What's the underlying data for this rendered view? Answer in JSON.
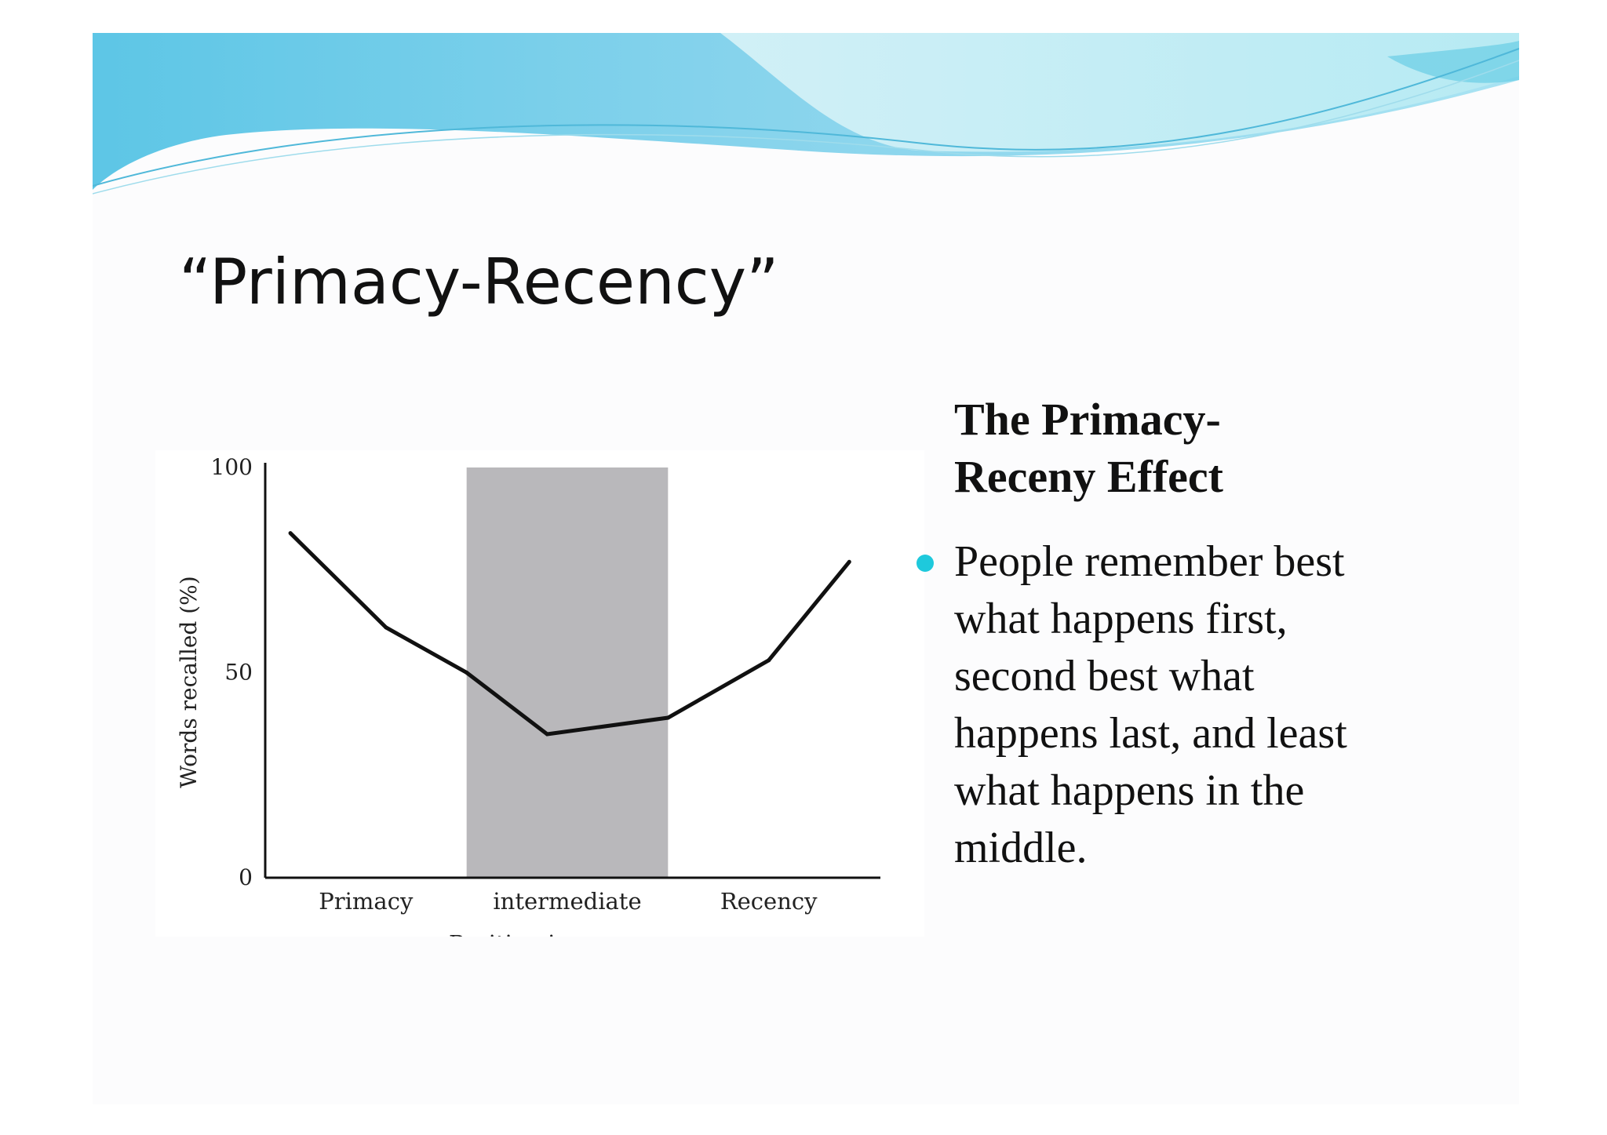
{
  "slide": {
    "title": "“Primacy-Recency”",
    "side_heading": "The Primacy-Receny Effect",
    "bullets": [
      "People remember best what happens first, second best what happens last, and least what happens in the middle."
    ],
    "colors": {
      "accent": "#1ec9dc",
      "banner_light": "#bfeaf2",
      "banner_mid": "#7ed6ea",
      "banner_dark": "#4fbfe3",
      "shade": "#b9b8bb",
      "line": "#111111"
    }
  },
  "chart_data": {
    "type": "line",
    "title": "",
    "xlabel": "Position in sequence",
    "ylabel": "Words recalled (%)",
    "ylim": [
      0,
      100
    ],
    "y_ticks": [
      0,
      50,
      100
    ],
    "xlim": [
      0,
      6
    ],
    "categories": [
      {
        "label": "Primacy",
        "x": 1
      },
      {
        "label": "intermediate",
        "x": 3
      },
      {
        "label": "Recency",
        "x": 5
      }
    ],
    "shaded_region": {
      "label": "intermediate",
      "x_start": 2,
      "x_end": 4
    },
    "series": [
      {
        "name": "",
        "points": [
          {
            "x": 0.25,
            "y": 84
          },
          {
            "x": 1.2,
            "y": 61
          },
          {
            "x": 2.0,
            "y": 50
          },
          {
            "x": 2.8,
            "y": 35
          },
          {
            "x": 4.0,
            "y": 39
          },
          {
            "x": 5.0,
            "y": 53
          },
          {
            "x": 5.8,
            "y": 77
          }
        ]
      }
    ],
    "grid": false,
    "legend": "none"
  }
}
